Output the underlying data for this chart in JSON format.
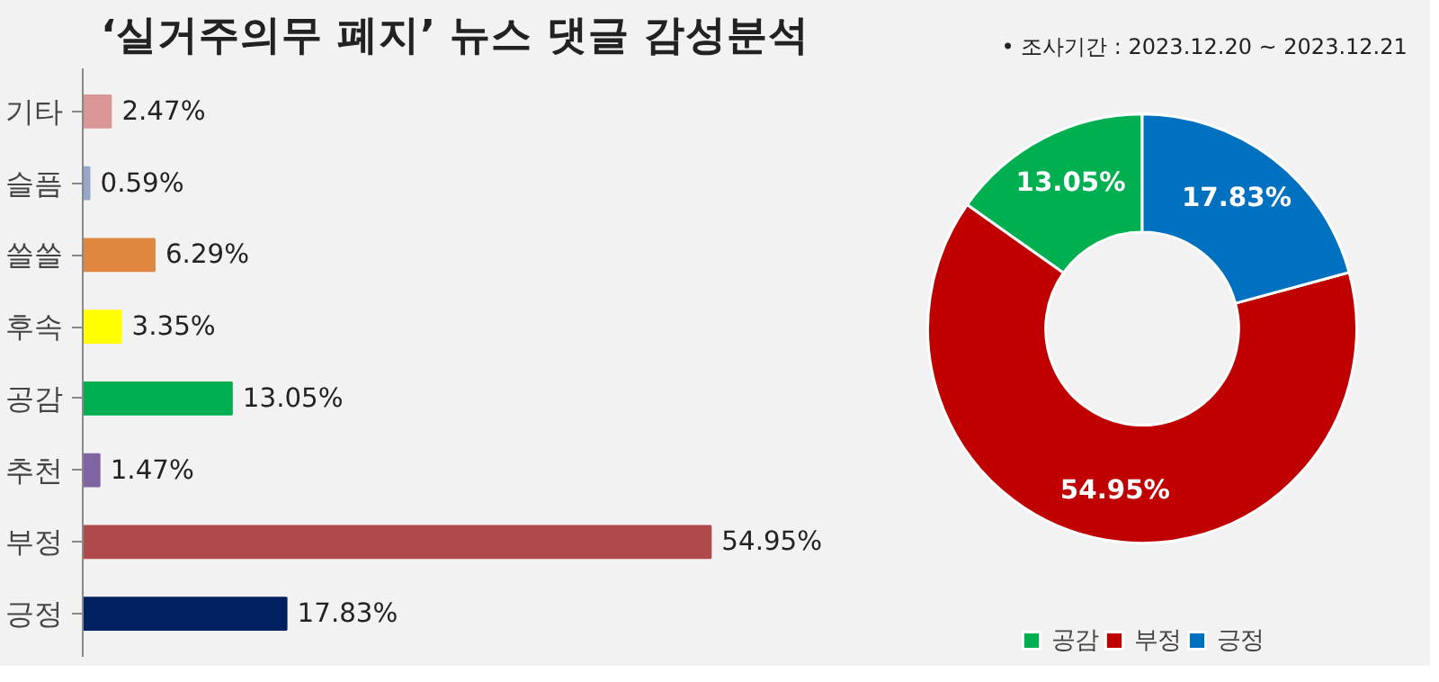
{
  "chart_data": [
    {
      "type": "bar",
      "orientation": "horizontal",
      "title": "‘실거주의무 폐지’ 뉴스 댓글 감성분석",
      "categories": [
        "기타",
        "슬픔",
        "쓸쓸",
        "후속",
        "공감",
        "추천",
        "부정",
        "긍정"
      ],
      "values": [
        2.47,
        0.59,
        6.29,
        3.35,
        13.05,
        1.47,
        54.95,
        17.83
      ],
      "colors": [
        "#d99694",
        "#95a8cc",
        "#e0873f",
        "#ffff00",
        "#00b050",
        "#8064a2",
        "#b0494a",
        "#002060"
      ],
      "value_labels": [
        "2.47%",
        "0.59%",
        "6.29%",
        "3.35%",
        "13.05%",
        "1.47%",
        "54.95%",
        "17.83%"
      ],
      "grid": false
    },
    {
      "type": "donut",
      "categories": [
        "공감",
        "부정",
        "긍정"
      ],
      "values": [
        13.05,
        54.95,
        17.83
      ],
      "colors": [
        "#00b050",
        "#c00000",
        "#0070c0"
      ],
      "value_labels": [
        "13.05%",
        "54.95%",
        "17.83%"
      ],
      "annotations": [
        "•   조사기간 : 2023.12.20 ~ 2023.12.21"
      ],
      "legend": "bottom"
    }
  ]
}
